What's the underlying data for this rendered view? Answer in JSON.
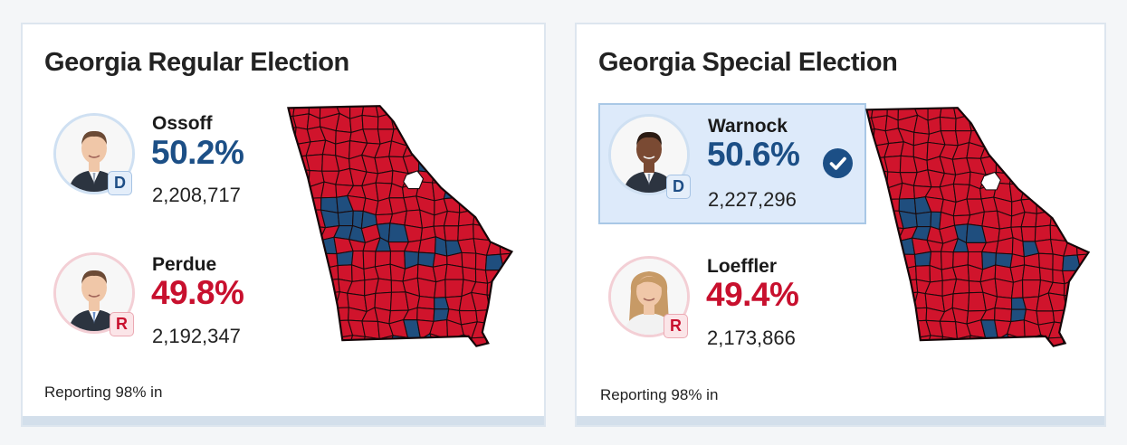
{
  "colors": {
    "dem": "#1c4f86",
    "rep": "#c8102e",
    "map_rep": "#d0142c",
    "map_dem": "#1f4e7e",
    "highlight_bg": "#ddeafa"
  },
  "races": [
    {
      "title": "Georgia Regular Election",
      "reporting": "Reporting 98% in",
      "candidates": [
        {
          "name": "Ossoff",
          "pct": "50.2%",
          "votes": "2,208,717",
          "party": "D",
          "winner": false
        },
        {
          "name": "Perdue",
          "pct": "49.8%",
          "votes": "2,192,347",
          "party": "R",
          "winner": false
        }
      ],
      "map_icon": "georgia-county-map"
    },
    {
      "title": "Georgia Special Election",
      "reporting": "Reporting 98% in",
      "candidates": [
        {
          "name": "Warnock",
          "pct": "50.6%",
          "votes": "2,227,296",
          "party": "D",
          "winner": true,
          "winner_icon": "check-circle-icon"
        },
        {
          "name": "Loeffler",
          "pct": "49.4%",
          "votes": "2,173,866",
          "party": "R",
          "winner": false
        }
      ],
      "map_icon": "georgia-county-map"
    }
  ]
}
